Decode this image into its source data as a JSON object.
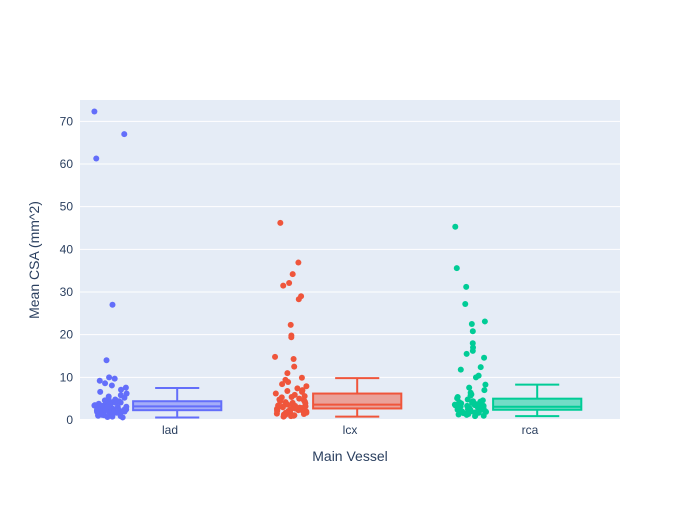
{
  "chart_data": {
    "type": "box",
    "xlabel": "Main Vessel",
    "ylabel": "Mean CSA (mm^2)",
    "categories": [
      "lad",
      "lcx",
      "rca"
    ],
    "ylim": [
      0,
      75
    ],
    "yticks": [
      0,
      10,
      20,
      30,
      40,
      50,
      60,
      70
    ],
    "grid": true,
    "legend": "none",
    "series": [
      {
        "category": "lad",
        "color": "#636efa",
        "box": {
          "lower_fence": 0.6,
          "q1": 2.3,
          "median": 3.2,
          "q3": 4.4,
          "upper_fence": 7.5
        },
        "points": [
          72.3,
          67.0,
          61.3,
          27.0,
          14.0,
          10.0,
          9.7,
          9.2,
          8.6,
          8.1,
          7.6,
          7.1,
          6.6,
          6.2,
          5.8,
          5.5,
          5.2,
          5.0,
          4.8,
          4.6,
          4.4,
          4.2,
          4.0,
          3.9,
          3.8,
          3.6,
          3.5,
          3.4,
          3.3,
          3.2,
          3.1,
          3.0,
          2.9,
          2.8,
          2.7,
          2.6,
          2.5,
          2.4,
          2.3,
          2.2,
          2.1,
          2.0,
          1.9,
          1.8,
          1.7,
          1.6,
          1.5,
          1.4,
          1.3,
          1.2,
          1.1,
          1.0,
          0.9,
          0.8,
          0.7,
          0.6,
          3.7,
          3.3,
          2.9,
          2.6,
          2.2,
          1.9,
          4.1,
          3.5,
          2.7,
          2.3,
          1.6,
          1.2,
          3.0,
          2.4
        ]
      },
      {
        "category": "lcx",
        "color": "#ef553b",
        "box": {
          "lower_fence": 0.8,
          "q1": 2.7,
          "median": 3.6,
          "q3": 6.2,
          "upper_fence": 9.8
        },
        "points": [
          46.2,
          36.9,
          34.2,
          32.1,
          31.5,
          29.0,
          28.3,
          22.3,
          19.8,
          19.4,
          14.8,
          14.3,
          12.5,
          11.0,
          9.9,
          9.4,
          8.9,
          8.4,
          7.9,
          7.4,
          7.0,
          6.6,
          6.2,
          5.9,
          5.6,
          5.3,
          5.0,
          4.8,
          4.6,
          4.4,
          4.2,
          4.0,
          3.8,
          3.6,
          3.5,
          3.4,
          3.3,
          3.2,
          3.1,
          3.0,
          2.9,
          2.8,
          2.7,
          2.6,
          2.5,
          2.4,
          2.3,
          2.2,
          2.1,
          2.0,
          1.9,
          1.8,
          1.7,
          1.6,
          1.5,
          1.4,
          1.3,
          1.2,
          1.1,
          1.0,
          0.9,
          0.8,
          4.3,
          3.9,
          3.1,
          2.6,
          2.1,
          1.7,
          5.4,
          6.8
        ]
      },
      {
        "category": "rca",
        "color": "#00cc96",
        "box": {
          "lower_fence": 0.9,
          "q1": 2.4,
          "median": 3.1,
          "q3": 5.0,
          "upper_fence": 8.3
        },
        "points": [
          45.3,
          35.6,
          31.2,
          27.2,
          23.1,
          22.5,
          20.8,
          18.0,
          17.0,
          16.2,
          15.5,
          14.6,
          12.4,
          11.8,
          10.4,
          10.0,
          8.3,
          7.6,
          7.0,
          6.4,
          6.0,
          5.7,
          5.4,
          5.1,
          4.8,
          4.6,
          4.4,
          4.2,
          4.0,
          3.8,
          3.6,
          3.5,
          3.4,
          3.3,
          3.2,
          3.1,
          3.0,
          2.9,
          2.8,
          2.7,
          2.6,
          2.5,
          2.4,
          2.3,
          2.2,
          2.1,
          2.0,
          1.9,
          1.8,
          1.7,
          1.6,
          1.5,
          1.4,
          1.3,
          1.2,
          1.1,
          1.0,
          0.9,
          3.9,
          3.3,
          2.8,
          2.4,
          2.0,
          1.6,
          4.3,
          3.7
        ]
      }
    ]
  }
}
